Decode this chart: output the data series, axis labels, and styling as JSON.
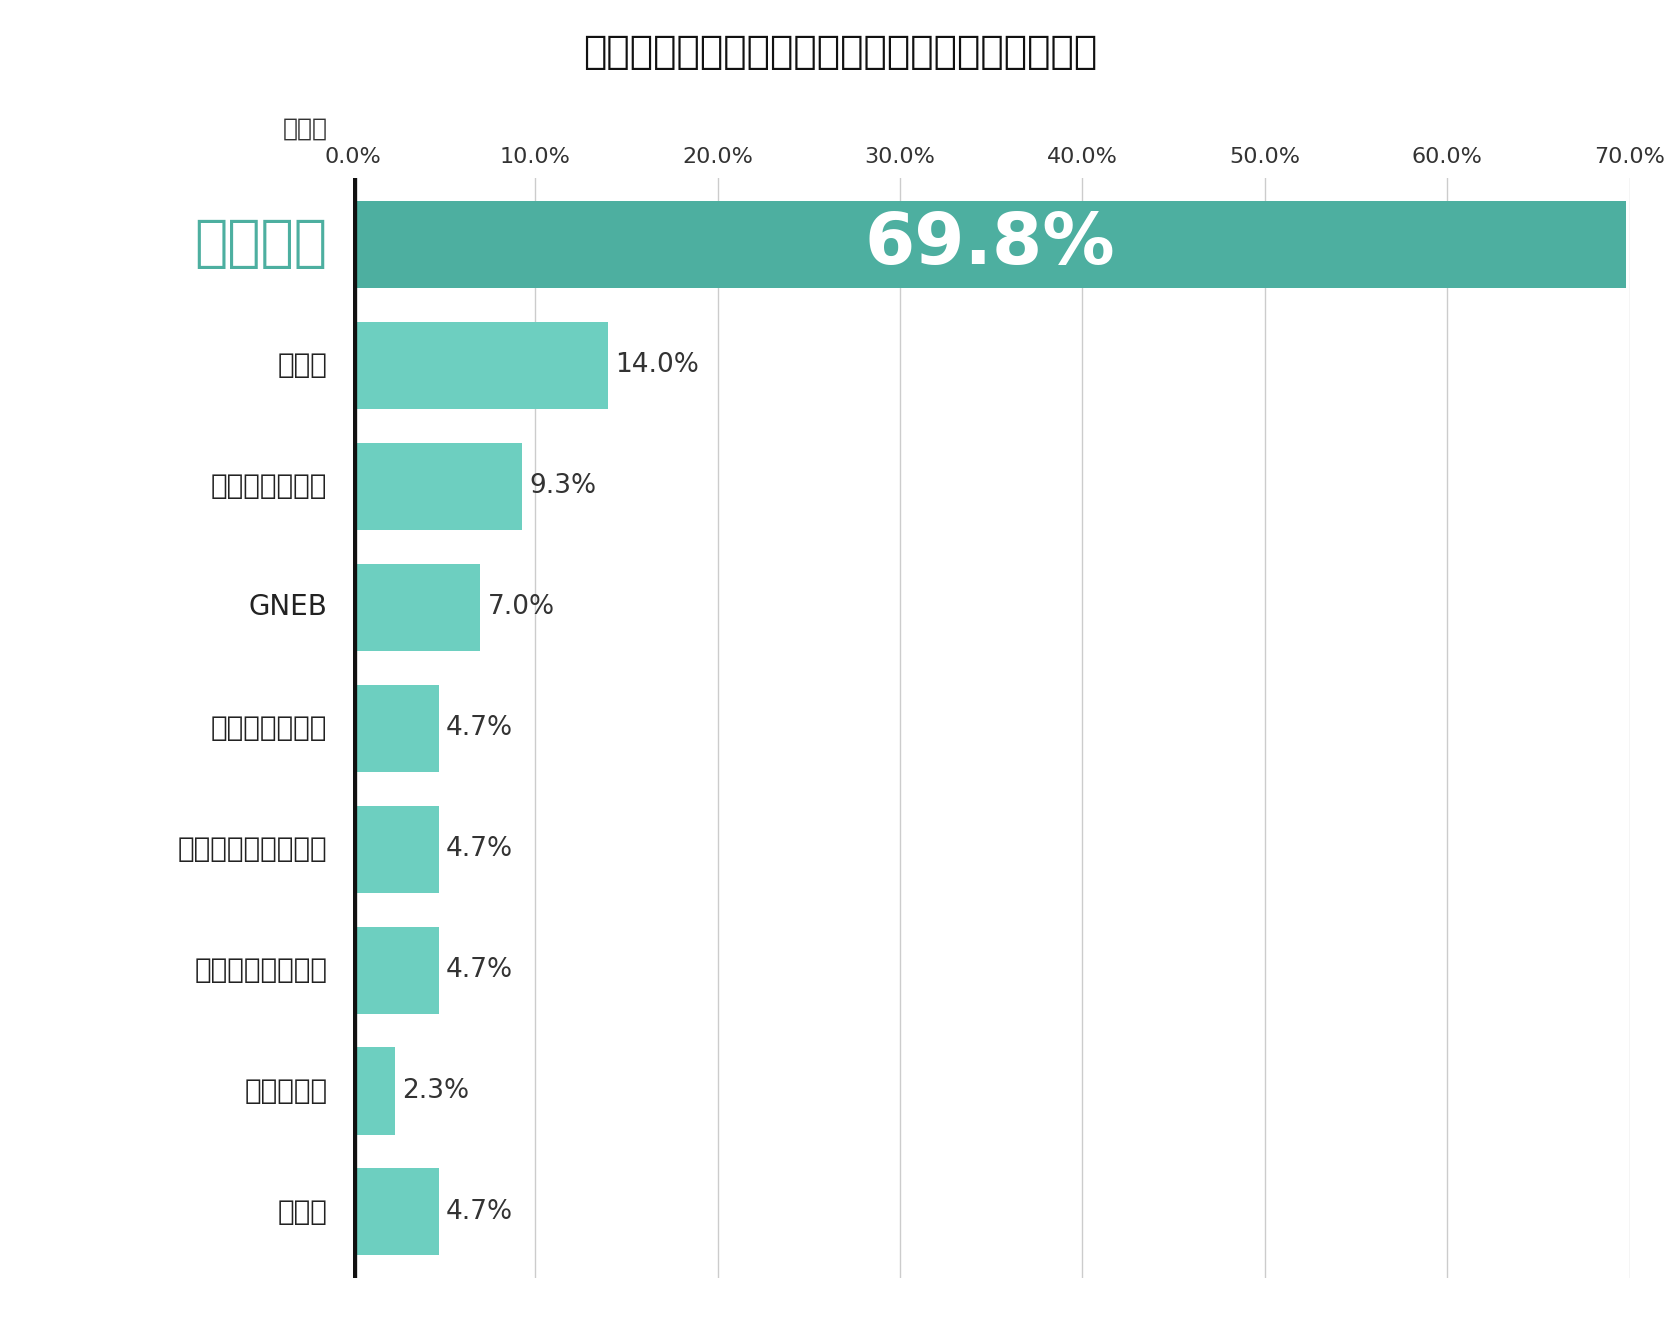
{
  "title": "インフルエンザ肺炎における複数菌感染の病原体",
  "xlabel": "検出率",
  "categories": [
    "肺炎球菌",
    "緑膨菌",
    "黄色ブドウ球菌",
    "GNEB",
    "肺炎クラミジア",
    "肺炎マイコプラズマ",
    "インフルエンザ菌",
    "レジオネラ",
    "その他"
  ],
  "values": [
    69.8,
    14.0,
    9.3,
    7.0,
    4.7,
    4.7,
    4.7,
    2.3,
    4.7
  ],
  "bar_color_first": "#4DAFA0",
  "bar_color_rest": "#6DCFC0",
  "first_label_color": "#4DAFA0",
  "first_label_fontsize": 40,
  "other_label_fontsize": 20,
  "value_label_first_color": "#ffffff",
  "value_label_first_fontsize": 52,
  "value_label_rest_fontsize": 19,
  "value_label_rest_color": "#333333",
  "title_fontsize": 28,
  "xlabel_fontsize": 18,
  "xlim": [
    0,
    70
  ],
  "xticks": [
    0,
    10,
    20,
    30,
    40,
    50,
    60,
    70
  ],
  "xtick_labels": [
    "0.0%",
    "10.0%",
    "20.0%",
    "30.0%",
    "40.0%",
    "50.0%",
    "60.0%",
    "70.0%"
  ],
  "background_color": "#ffffff",
  "divider_color": "#111111",
  "grid_color": "#cccccc",
  "bar_height": 0.72
}
